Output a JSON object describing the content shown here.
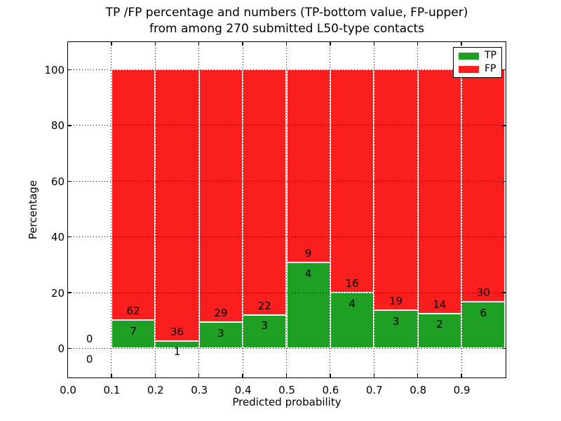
{
  "figure": {
    "title_line1": "TP /FP percentage and numbers (TP-bottom value, FP-upper)",
    "title_line2": "from among 270 submitted L50-type contacts"
  },
  "axes": {
    "xlabel": "Predicted probability",
    "ylabel": "Percentage"
  },
  "legend": {
    "items": [
      {
        "label": "TP",
        "color": "#1f9f24"
      },
      {
        "label": "FP",
        "color": "#fa1e1e"
      }
    ]
  },
  "chart_data": {
    "type": "bar",
    "subtype": "stacked-percentage-histogram",
    "title": "TP /FP percentage and numbers (TP-bottom value, FP-upper) from among 270 submitted L50-type contacts",
    "xlabel": "Predicted probability",
    "ylabel": "Percentage",
    "total_contacts": 270,
    "xlim": [
      0.0,
      1.0
    ],
    "ylim": [
      -10.33,
      110.07
    ],
    "xticks": [
      0.0,
      0.1,
      0.2,
      0.3,
      0.4,
      0.5,
      0.6,
      0.7,
      0.8,
      0.9
    ],
    "xtick_labels": [
      "0.0",
      "0.1",
      "0.2",
      "0.3",
      "0.4",
      "0.5",
      "0.6",
      "0.7",
      "0.8",
      "0.9"
    ],
    "yticks": [
      0,
      20,
      40,
      60,
      80,
      100
    ],
    "ytick_labels": [
      "0",
      "20",
      "40",
      "60",
      "80",
      "100"
    ],
    "grid": "dotted",
    "legend_position": "upper right",
    "bar_edge_color": "#ffffff",
    "colors": {
      "TP": "#1f9f24",
      "FP": "#fa1e1e"
    },
    "bins": [
      {
        "x_start": 0.0,
        "x_end": 0.1,
        "tp_count": 0,
        "fp_count": 0,
        "tp_pct": 0,
        "fp_pct": 0
      },
      {
        "x_start": 0.1,
        "x_end": 0.2,
        "tp_count": 7,
        "fp_count": 62,
        "tp_pct": 10.14,
        "fp_pct": 89.86
      },
      {
        "x_start": 0.2,
        "x_end": 0.3,
        "tp_count": 1,
        "fp_count": 36,
        "tp_pct": 2.7,
        "fp_pct": 97.3
      },
      {
        "x_start": 0.3,
        "x_end": 0.4,
        "tp_count": 3,
        "fp_count": 29,
        "tp_pct": 9.38,
        "fp_pct": 90.62
      },
      {
        "x_start": 0.4,
        "x_end": 0.5,
        "tp_count": 3,
        "fp_count": 22,
        "tp_pct": 12.0,
        "fp_pct": 88.0
      },
      {
        "x_start": 0.5,
        "x_end": 0.6,
        "tp_count": 4,
        "fp_count": 9,
        "tp_pct": 30.77,
        "fp_pct": 69.23
      },
      {
        "x_start": 0.6,
        "x_end": 0.7,
        "tp_count": 4,
        "fp_count": 16,
        "tp_pct": 20.0,
        "fp_pct": 80.0
      },
      {
        "x_start": 0.7,
        "x_end": 0.8,
        "tp_count": 3,
        "fp_count": 19,
        "tp_pct": 13.64,
        "fp_pct": 86.36
      },
      {
        "x_start": 0.8,
        "x_end": 0.9,
        "tp_count": 2,
        "fp_count": 14,
        "tp_pct": 12.5,
        "fp_pct": 87.5
      },
      {
        "x_start": 0.9,
        "x_end": 1.0,
        "tp_count": 6,
        "fp_count": 30,
        "tp_pct": 16.67,
        "fp_pct": 83.33
      }
    ]
  }
}
